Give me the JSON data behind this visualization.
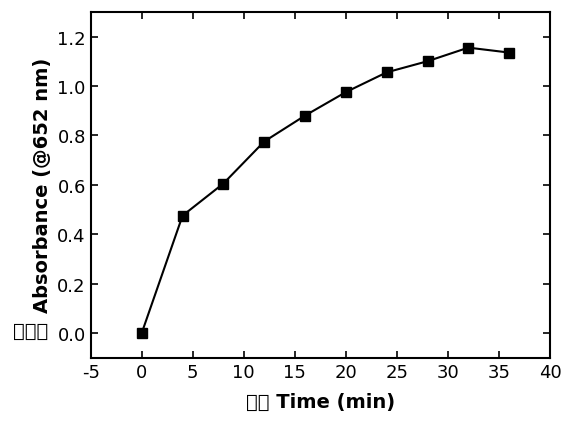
{
  "x": [
    0,
    4,
    8,
    12,
    16,
    20,
    24,
    28,
    32,
    36
  ],
  "y": [
    0.0,
    0.475,
    0.605,
    0.775,
    0.88,
    0.975,
    1.055,
    1.1,
    1.155,
    1.135
  ],
  "xlabel": "时间 Time (min)",
  "ylabel_english": "Absorbance (@652 nm)",
  "ylabel_chinese": "吸光度",
  "xlim": [
    -5,
    40
  ],
  "ylim": [
    -0.1,
    1.3
  ],
  "xticks": [
    -5,
    0,
    5,
    10,
    15,
    20,
    25,
    30,
    35,
    40
  ],
  "yticks": [
    0.0,
    0.2,
    0.4,
    0.6,
    0.8,
    1.0,
    1.2
  ],
  "line_color": "#000000",
  "marker": "s",
  "marker_size": 7,
  "line_width": 1.5,
  "marker_face_color": "#000000",
  "marker_edge_color": "#000000",
  "background_color": "#ffffff",
  "tick_fontsize": 13,
  "label_fontsize": 14
}
